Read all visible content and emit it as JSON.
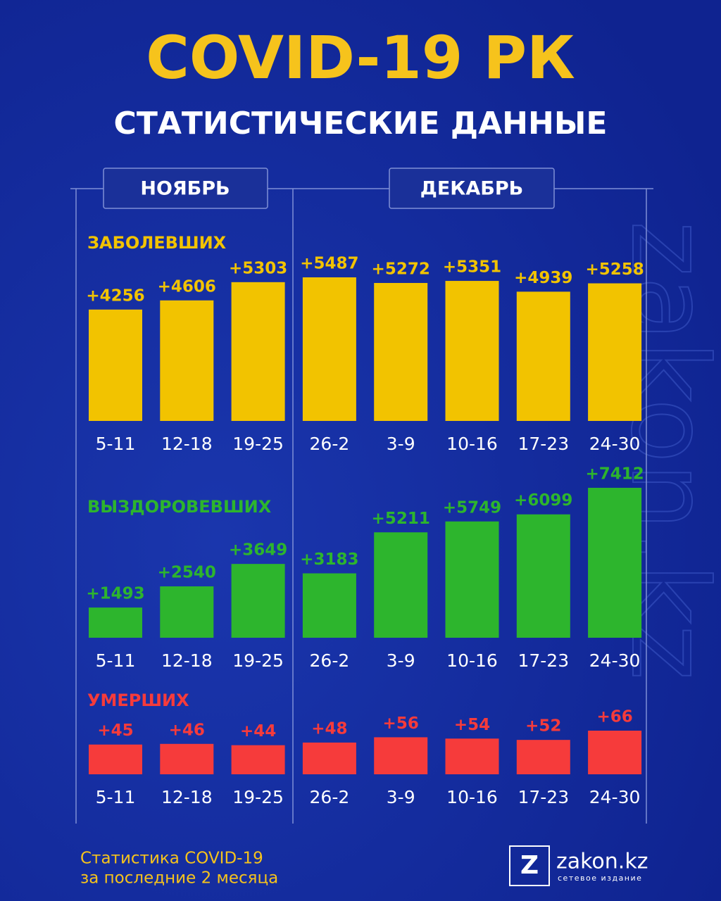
{
  "title": "COVID-19 РК",
  "subtitle": "СТАТИСТИЧЕСКИЕ ДАННЫЕ",
  "months": [
    "НОЯБРЬ",
    "ДЕКАБРЬ"
  ],
  "watermark": "zakon.kz",
  "footer": [
    "Статистика COVID-19",
    "за последние 2 месяца"
  ],
  "logo": {
    "mark": "Z",
    "name": "zakon.kz",
    "tagline": "сетевое издание"
  },
  "chart_data": [
    {
      "type": "bar",
      "title": "ЗАБОЛЕВШИХ",
      "color": "#f2c300",
      "categories": [
        "5-11",
        "12-18",
        "19-25",
        "26-2",
        "3-9",
        "10-16",
        "17-23",
        "24-30"
      ],
      "values": [
        4256,
        4606,
        5303,
        5487,
        5272,
        5351,
        4939,
        5258
      ],
      "value_labels": [
        "+4256",
        "+4606",
        "+5303",
        "+5487",
        "+5272",
        "+5351",
        "+4939",
        "+5258"
      ]
    },
    {
      "type": "bar",
      "title": "ВЫЗДОРОВЕВШИХ",
      "color": "#2db52d",
      "categories": [
        "5-11",
        "12-18",
        "19-25",
        "26-2",
        "3-9",
        "10-16",
        "17-23",
        "24-30"
      ],
      "values": [
        1493,
        2540,
        3649,
        3183,
        5211,
        5749,
        6099,
        7412
      ],
      "value_labels": [
        "+1493",
        "+2540",
        "+3649",
        "+3183",
        "+5211",
        "+5749",
        "+6099",
        "+7412"
      ]
    },
    {
      "type": "bar",
      "title": "УМЕРШИХ",
      "color": "#f63b3b",
      "categories": [
        "5-11",
        "12-18",
        "19-25",
        "26-2",
        "3-9",
        "10-16",
        "17-23",
        "24-30"
      ],
      "values": [
        45,
        46,
        44,
        48,
        56,
        54,
        52,
        66
      ],
      "value_labels": [
        "+45",
        "+46",
        "+44",
        "+48",
        "+56",
        "+54",
        "+52",
        "+66"
      ]
    }
  ]
}
